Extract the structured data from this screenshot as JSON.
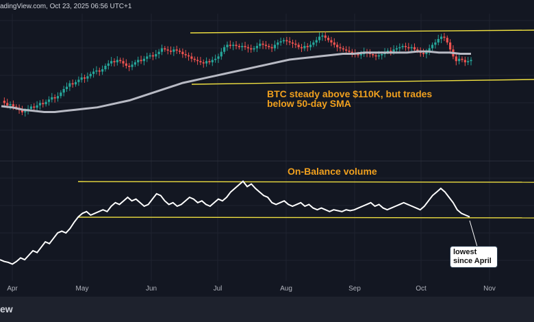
{
  "header": {
    "text": "adingView.com, Oct 23, 2025 06:56 UTC+1"
  },
  "footer": {
    "brand": "ew"
  },
  "colors": {
    "background": "#131722",
    "up": "#26a69a",
    "down": "#ef5350",
    "sma": "#b8bac4",
    "obv": "#ffffff",
    "channel": "#f0e040",
    "annotation": "#f0a01e"
  },
  "annotations": {
    "price_note_line1": "BTC steady above $110K, but trades",
    "price_note_line2": "below 50-day SMA",
    "obv_title": "On-Balance volume",
    "callout_line1": "lowest",
    "callout_line2": "since April"
  },
  "chart_data": [
    {
      "type": "candlestick",
      "title": "",
      "x_axis": {
        "ticks": [
          "Apr",
          "May",
          "Jun",
          "Jul",
          "Aug",
          "Sep",
          "Oct",
          "Nov"
        ]
      },
      "grid": true,
      "price_path": [
        0.4,
        0.38,
        0.36,
        0.37,
        0.35,
        0.34,
        0.32,
        0.3,
        0.31,
        0.33,
        0.35,
        0.34,
        0.36,
        0.38,
        0.37,
        0.39,
        0.41,
        0.43,
        0.42,
        0.44,
        0.47,
        0.5,
        0.52,
        0.55,
        0.54,
        0.56,
        0.58,
        0.6,
        0.59,
        0.61,
        0.63,
        0.65,
        0.66,
        0.65,
        0.67,
        0.7,
        0.72,
        0.74,
        0.73,
        0.75,
        0.74,
        0.72,
        0.7,
        0.69,
        0.71,
        0.73,
        0.75,
        0.74,
        0.76,
        0.78,
        0.79,
        0.78,
        0.8,
        0.82,
        0.85,
        0.84,
        0.83,
        0.82,
        0.84,
        0.83,
        0.82,
        0.8,
        0.79,
        0.78,
        0.76,
        0.75,
        0.74,
        0.73,
        0.72,
        0.74,
        0.73,
        0.75,
        0.76,
        0.78,
        0.82,
        0.86,
        0.88,
        0.87,
        0.88,
        0.87,
        0.86,
        0.87,
        0.86,
        0.85,
        0.84,
        0.85,
        0.87,
        0.89,
        0.88,
        0.87,
        0.86,
        0.85,
        0.88,
        0.9,
        0.91,
        0.92,
        0.91,
        0.9,
        0.89,
        0.88,
        0.86,
        0.85,
        0.87,
        0.86,
        0.88,
        0.9,
        0.92,
        0.95,
        0.96,
        0.94,
        0.92,
        0.9,
        0.88,
        0.86,
        0.85,
        0.84,
        0.83,
        0.82,
        0.81,
        0.8,
        0.79,
        0.8,
        0.82,
        0.81,
        0.8,
        0.79,
        0.78,
        0.79,
        0.8,
        0.82,
        0.83,
        0.82,
        0.84,
        0.85,
        0.86,
        0.87,
        0.86,
        0.85,
        0.86,
        0.84,
        0.83,
        0.81,
        0.8,
        0.82,
        0.85,
        0.88,
        0.9,
        0.93,
        0.95,
        0.94,
        0.9,
        0.84,
        0.78,
        0.74,
        0.76,
        0.75,
        0.73,
        0.74,
        0.75
      ],
      "sma_path": [
        0.4,
        0.39,
        0.37,
        0.36,
        0.35,
        0.35,
        0.36,
        0.37,
        0.38,
        0.39,
        0.41,
        0.43,
        0.45,
        0.48,
        0.51,
        0.54,
        0.57,
        0.6,
        0.62,
        0.64,
        0.66,
        0.68,
        0.7,
        0.72,
        0.74,
        0.76,
        0.78,
        0.8,
        0.81,
        0.82,
        0.83,
        0.84,
        0.85,
        0.85,
        0.86,
        0.86,
        0.86,
        0.86,
        0.86
      ],
      "sma_extra": [
        0.87,
        0.87,
        0.86,
        0.86,
        0.85,
        0.85
      ]
    },
    {
      "type": "line",
      "title": "",
      "series": [
        {
          "name": "On-Balance volume"
        }
      ],
      "x_axis": {
        "ticks": [
          "Apr",
          "May",
          "Jun",
          "Jul",
          "Aug",
          "Sep",
          "Oct",
          "Nov"
        ]
      },
      "values": [
        0.1,
        0.08,
        0.07,
        0.05,
        0.08,
        0.12,
        0.1,
        0.15,
        0.2,
        0.18,
        0.24,
        0.3,
        0.28,
        0.34,
        0.4,
        0.42,
        0.4,
        0.45,
        0.52,
        0.58,
        0.62,
        0.64,
        0.6,
        0.62,
        0.64,
        0.66,
        0.64,
        0.7,
        0.74,
        0.72,
        0.76,
        0.8,
        0.76,
        0.78,
        0.74,
        0.7,
        0.72,
        0.78,
        0.84,
        0.82,
        0.76,
        0.72,
        0.74,
        0.7,
        0.72,
        0.76,
        0.8,
        0.78,
        0.74,
        0.76,
        0.72,
        0.7,
        0.74,
        0.78,
        0.76,
        0.8,
        0.86,
        0.9,
        0.94,
        0.98,
        0.92,
        0.95,
        0.9,
        0.86,
        0.82,
        0.8,
        0.74,
        0.72,
        0.74,
        0.76,
        0.72,
        0.7,
        0.72,
        0.74,
        0.7,
        0.72,
        0.68,
        0.66,
        0.68,
        0.66,
        0.64,
        0.66,
        0.65,
        0.64,
        0.66,
        0.65,
        0.66,
        0.68,
        0.7,
        0.72,
        0.74,
        0.7,
        0.72,
        0.68,
        0.66,
        0.68,
        0.7,
        0.72,
        0.74,
        0.72,
        0.7,
        0.68,
        0.66,
        0.7,
        0.76,
        0.82,
        0.86,
        0.9,
        0.86,
        0.8,
        0.74,
        0.66,
        0.62,
        0.6,
        0.58
      ]
    }
  ]
}
